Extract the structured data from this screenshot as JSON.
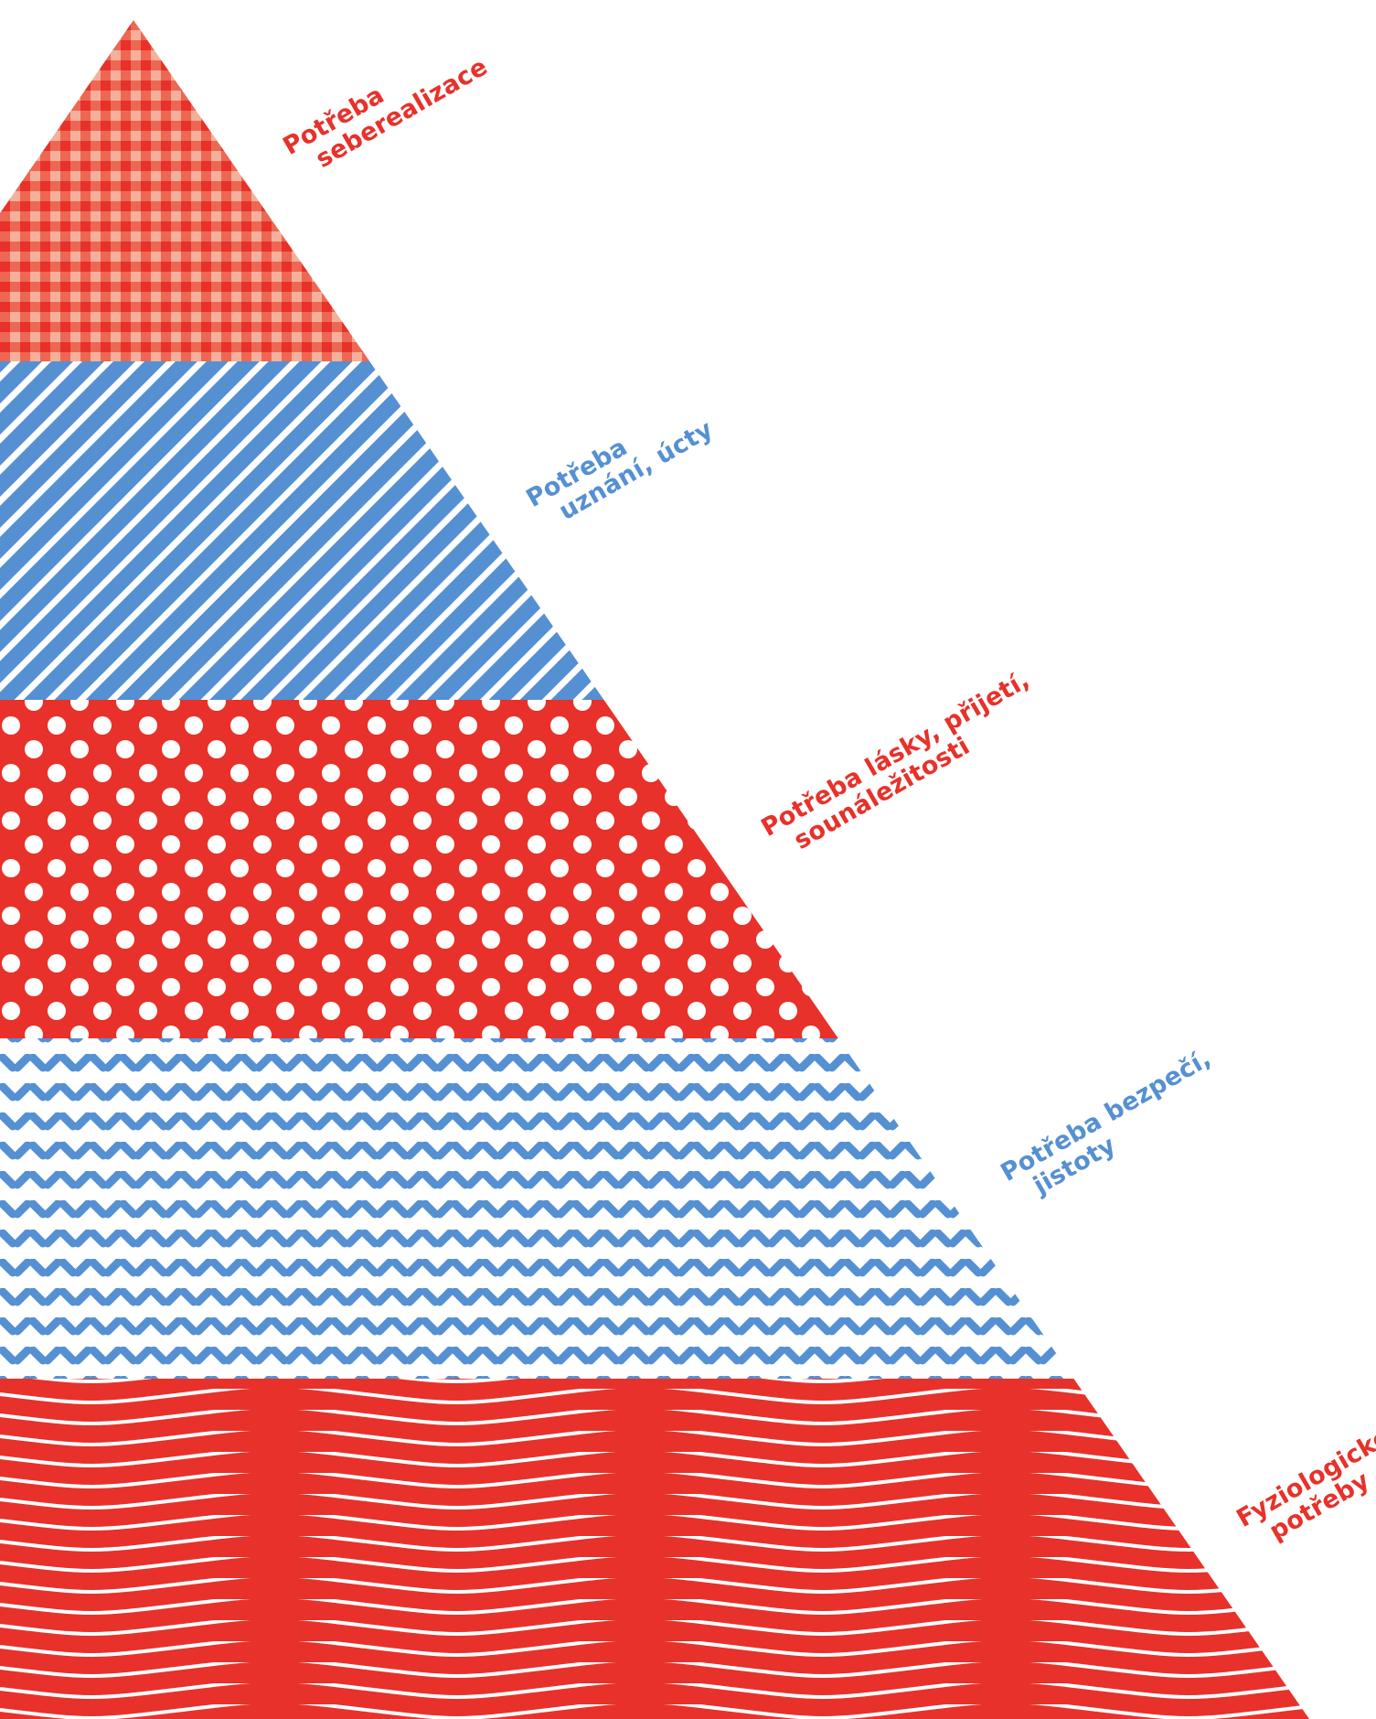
{
  "colors": {
    "red": "#e8312a",
    "red_light": "#f5a48e",
    "blue": "#5590d3",
    "white": "#ffffff"
  },
  "tiers": [
    {
      "id": "self-actualization",
      "pattern": "gingham",
      "color": "#e8312a",
      "label_line1": "Potřeba",
      "label_line2": "seberealizace"
    },
    {
      "id": "esteem",
      "pattern": "diagonal-stripes",
      "color": "#5590d3",
      "label_line1": "Potřeba",
      "label_line2": "uznání, úcty"
    },
    {
      "id": "love-belonging",
      "pattern": "polka-dots",
      "color": "#e8312a",
      "label_line1": "Potřeba lásky, přijetí,",
      "label_line2": "sounáležitosti"
    },
    {
      "id": "safety",
      "pattern": "herringbone",
      "color": "#5590d3",
      "label_line1": "Potřeba bezpečí,",
      "label_line2": "jistoty"
    },
    {
      "id": "physiological",
      "pattern": "waves",
      "color": "#e8312a",
      "label_line1": "Fyziologické",
      "label_line2": "potřeby"
    }
  ]
}
